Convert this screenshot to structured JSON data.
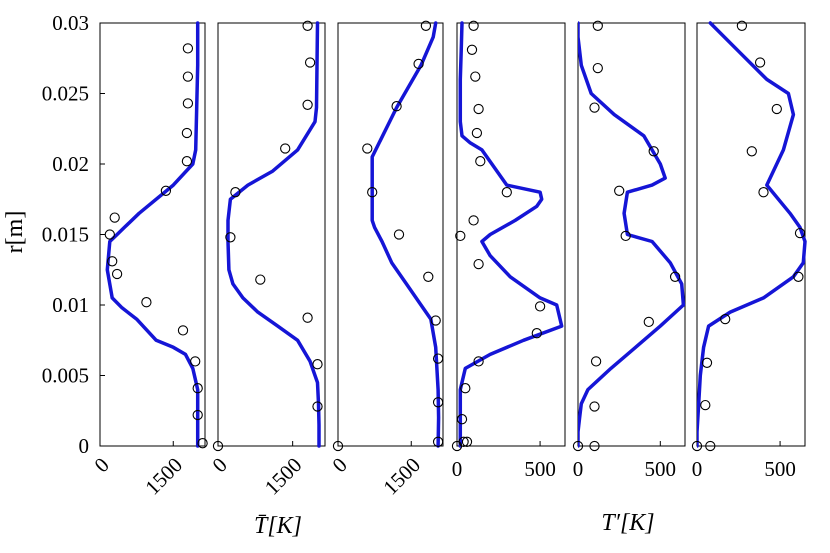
{
  "chart_data": {
    "type": "line",
    "y_axis": {
      "label": "r[m]",
      "range": [
        0,
        0.03
      ],
      "ticks": [
        0,
        0.005,
        0.01,
        0.015,
        0.02,
        0.025,
        0.03
      ],
      "tick_labels": [
        "0",
        "0.005",
        "0.01",
        "0.015",
        "0.02",
        "0.025",
        "0.03"
      ]
    },
    "group_labels": [
      {
        "text": "T̄[K]",
        "under_panels": [
          0,
          1,
          2
        ]
      },
      {
        "text": "T′[K]",
        "under_panels": [
          3,
          4,
          5
        ]
      }
    ],
    "panels": [
      {
        "quantity": "mean temperature",
        "xlim": [
          0,
          2150
        ],
        "x_ticks": [
          0,
          1500
        ],
        "x_tick_labels": [
          "0",
          "1500"
        ],
        "x_tick_rotation": -45,
        "line": {
          "x": [
            2000,
            2000,
            1980,
            1960,
            1900,
            1500,
            800,
            500,
            350,
            200,
            150,
            250,
            450,
            750,
            1150,
            1500,
            1750,
            1900,
            2000,
            2000,
            2000,
            2000
          ],
          "y": [
            0.03,
            0.027,
            0.024,
            0.021,
            0.02,
            0.0185,
            0.0165,
            0.0155,
            0.015,
            0.0145,
            0.0125,
            0.0105,
            0.0098,
            0.009,
            0.0075,
            0.007,
            0.0065,
            0.0055,
            0.004,
            0.002,
            0.0005,
            0
          ]
        },
        "points": {
          "x": [
            1800,
            1800,
            1800,
            1780,
            1780,
            1350,
            300,
            200,
            250,
            350,
            950,
            1700,
            1950,
            2000,
            2000,
            2100
          ],
          "y": [
            0.0282,
            0.0262,
            0.0243,
            0.0222,
            0.0202,
            0.0181,
            0.0162,
            0.015,
            0.0131,
            0.0122,
            0.0102,
            0.0082,
            0.006,
            0.0041,
            0.0022,
            0.0002
          ]
        }
      },
      {
        "quantity": "mean temperature",
        "xlim": [
          0,
          2150
        ],
        "x_ticks": [
          0,
          1500
        ],
        "x_tick_labels": [
          "0",
          "1500"
        ],
        "x_tick_rotation": -45,
        "line": {
          "x": [
            2000,
            1990,
            1980,
            1950,
            1600,
            1100,
            600,
            250,
            200,
            200,
            220,
            300,
            500,
            800,
            1200,
            1600,
            1850,
            2000,
            2020,
            2030,
            2030,
            2030
          ],
          "y": [
            0.03,
            0.027,
            0.024,
            0.023,
            0.021,
            0.0195,
            0.0185,
            0.0175,
            0.016,
            0.0145,
            0.0125,
            0.0115,
            0.0105,
            0.0095,
            0.0085,
            0.0075,
            0.006,
            0.0045,
            0.003,
            0.0015,
            0.0005,
            0
          ]
        },
        "points": {
          "x": [
            1800,
            1850,
            1800,
            1350,
            350,
            250,
            850,
            1800,
            2000,
            2000,
            0
          ],
          "y": [
            0.0298,
            0.0272,
            0.0242,
            0.0211,
            0.018,
            0.0148,
            0.0118,
            0.0091,
            0.0058,
            0.0028,
            0
          ]
        }
      },
      {
        "quantity": "mean temperature",
        "xlim": [
          0,
          2150
        ],
        "x_ticks": [
          0,
          1500
        ],
        "x_tick_labels": [
          "0",
          "1500"
        ],
        "x_tick_rotation": -45,
        "line": {
          "x": [
            2000,
            1950,
            1700,
            1200,
            700,
            700,
            750,
            900,
            1100,
            1400,
            1700,
            1900,
            2000,
            2050,
            2060,
            2050
          ],
          "y": [
            0.03,
            0.029,
            0.027,
            0.024,
            0.0205,
            0.016,
            0.0155,
            0.0145,
            0.013,
            0.0115,
            0.01,
            0.009,
            0.007,
            0.004,
            0.002,
            0
          ]
        },
        "points": {
          "x": [
            1800,
            1650,
            1200,
            600,
            700,
            1250,
            1850,
            2000,
            2050,
            2050,
            2050,
            0
          ],
          "y": [
            0.0298,
            0.0271,
            0.0241,
            0.0211,
            0.018,
            0.015,
            0.012,
            0.0089,
            0.0062,
            0.0031,
            0.0003,
            0
          ]
        }
      },
      {
        "quantity": "temperature fluctuation",
        "xlim": [
          0,
          650
        ],
        "x_ticks": [
          0,
          500
        ],
        "x_tick_labels": [
          "0",
          "500"
        ],
        "x_tick_rotation": 0,
        "line": {
          "x": [
            30,
            25,
            20,
            20,
            20,
            30,
            80,
            150,
            300,
            500,
            510,
            480,
            350,
            200,
            150,
            200,
            320,
            500,
            600,
            630,
            400,
            200,
            50,
            20,
            20,
            20
          ],
          "y": [
            0.03,
            0.028,
            0.026,
            0.024,
            0.023,
            0.022,
            0.0215,
            0.021,
            0.0185,
            0.018,
            0.0175,
            0.017,
            0.016,
            0.015,
            0.0145,
            0.0135,
            0.012,
            0.0105,
            0.01,
            0.0085,
            0.0075,
            0.0065,
            0.0055,
            0.004,
            0.002,
            0
          ]
        },
        "points": {
          "x": [
            100,
            90,
            110,
            130,
            120,
            140,
            300,
            100,
            20,
            130,
            500,
            480,
            130,
            50,
            30,
            40,
            60,
            0
          ],
          "y": [
            0.0298,
            0.0281,
            0.0262,
            0.0239,
            0.0222,
            0.0202,
            0.018,
            0.016,
            0.0149,
            0.0129,
            0.0099,
            0.008,
            0.006,
            0.0041,
            0.0019,
            0.0003,
            0.0003,
            0
          ]
        }
      },
      {
        "quantity": "temperature fluctuation",
        "xlim": [
          0,
          650
        ],
        "x_ticks": [
          0,
          500
        ],
        "x_tick_labels": [
          "0",
          "500"
        ],
        "x_tick_rotation": 0,
        "line": {
          "x": [
            0,
            0,
            20,
            80,
            220,
            400,
            500,
            530,
            450,
            300,
            280,
            300,
            450,
            560,
            630,
            640,
            500,
            350,
            200,
            60,
            20,
            10,
            0,
            0,
            0
          ],
          "y": [
            0.03,
            0.029,
            0.027,
            0.025,
            0.0235,
            0.022,
            0.02,
            0.019,
            0.0185,
            0.018,
            0.0165,
            0.015,
            0.0145,
            0.013,
            0.0115,
            0.01,
            0.0085,
            0.007,
            0.0055,
            0.004,
            0.003,
            0.002,
            0.001,
            0.0005,
            0
          ]
        },
        "points": {
          "x": [
            120,
            120,
            100,
            460,
            250,
            290,
            590,
            430,
            110,
            100,
            0,
            100
          ],
          "y": [
            0.0298,
            0.0268,
            0.024,
            0.0209,
            0.0181,
            0.0149,
            0.012,
            0.0088,
            0.006,
            0.0028,
            0,
            0
          ]
        }
      },
      {
        "quantity": "temperature fluctuation",
        "xlim": [
          0,
          650
        ],
        "x_ticks": [
          0,
          500
        ],
        "x_tick_labels": [
          "0",
          "500"
        ],
        "x_tick_rotation": 0,
        "line": {
          "x": [
            80,
            250,
            420,
            550,
            580,
            520,
            420,
            560,
            620,
            650,
            640,
            580,
            400,
            200,
            70,
            40,
            20,
            10,
            0,
            0
          ],
          "y": [
            0.03,
            0.028,
            0.026,
            0.025,
            0.0235,
            0.021,
            0.0185,
            0.0165,
            0.0155,
            0.0145,
            0.013,
            0.012,
            0.0105,
            0.0095,
            0.0085,
            0.007,
            0.005,
            0.003,
            0.001,
            0
          ]
        },
        "points": {
          "x": [
            270,
            380,
            480,
            330,
            400,
            620,
            610,
            170,
            60,
            50,
            0,
            80
          ],
          "y": [
            0.0298,
            0.0272,
            0.0239,
            0.0209,
            0.018,
            0.0151,
            0.012,
            0.009,
            0.0059,
            0.0029,
            0,
            0
          ]
        }
      }
    ]
  },
  "colors": {
    "simulation_line": "#1515d6",
    "experiment_marker": "#000000"
  }
}
